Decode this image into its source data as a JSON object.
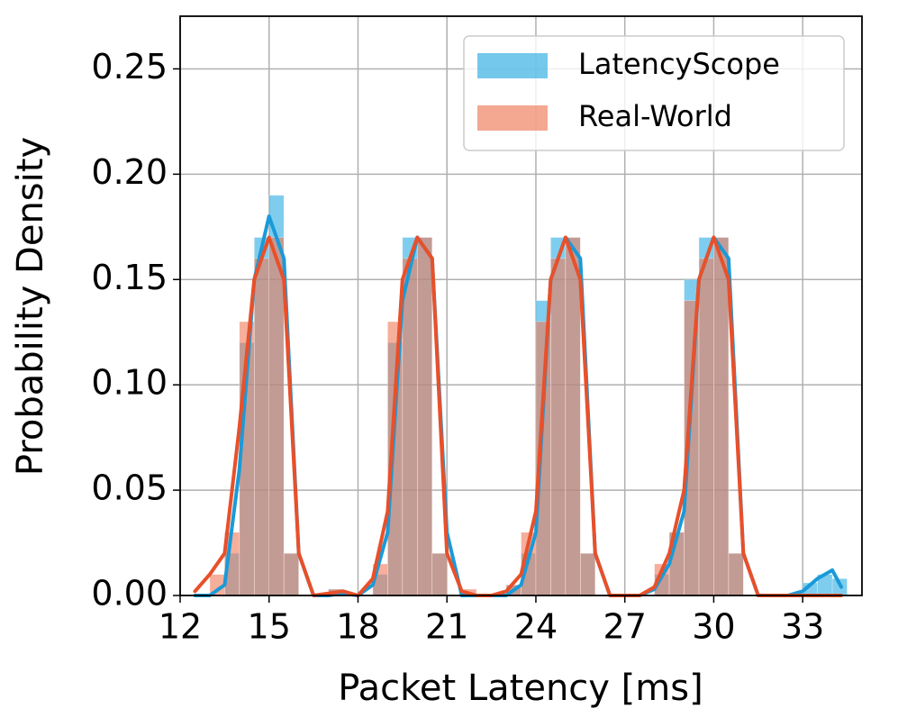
{
  "chart_data": {
    "type": "histogram",
    "x_label": "Packet Latency [ms]",
    "y_label": "Probability Density",
    "bins": [
      13,
      13.5,
      14,
      14.5,
      15,
      15.5,
      16,
      16.5,
      17,
      17.5,
      18,
      18.5,
      19,
      19.5,
      20,
      20.5,
      21,
      21.5,
      22,
      22.5,
      23,
      23.5,
      24,
      24.5,
      25,
      25.5,
      26,
      26.5,
      27,
      27.5,
      28,
      28.5,
      29,
      29.5,
      30,
      30.5,
      31,
      31.5,
      32,
      32.5,
      33,
      33.5,
      34,
      34.5
    ],
    "kde_x": [
      12.5,
      13,
      13.5,
      14,
      14.5,
      15,
      15.5,
      16,
      16.5,
      17,
      17.5,
      18,
      18.5,
      19,
      19.5,
      20,
      20.5,
      21,
      21.5,
      22,
      22.5,
      23,
      23.5,
      24,
      24.5,
      25,
      25.5,
      26,
      26.5,
      27,
      27.5,
      28,
      28.5,
      29,
      29.5,
      30,
      30.5,
      31,
      31.5,
      32,
      32.5,
      33,
      33.5,
      34,
      34.3
    ],
    "series": [
      {
        "name": "LatencyScope",
        "color": "#29abe2",
        "line_color": "#1a9ad8",
        "values": [
          0,
          0.02,
          0.12,
          0.17,
          0.19,
          0.02,
          0,
          0,
          0.003,
          0,
          0,
          0.01,
          0.12,
          0.17,
          0.17,
          0.02,
          0,
          0,
          0,
          0,
          0.005,
          0.02,
          0.14,
          0.17,
          0.17,
          0.02,
          0,
          0,
          0,
          0,
          0.01,
          0.03,
          0.15,
          0.17,
          0.17,
          0.02,
          0,
          0,
          0,
          0,
          0.006,
          0.01,
          0.008
        ],
        "kde": [
          0,
          0,
          0.005,
          0.06,
          0.15,
          0.18,
          0.16,
          0.02,
          0,
          0,
          0.001,
          0,
          0.005,
          0.03,
          0.14,
          0.17,
          0.16,
          0.03,
          0,
          0,
          0,
          0,
          0.005,
          0.03,
          0.15,
          0.17,
          0.16,
          0.02,
          0,
          0,
          0,
          0.003,
          0.015,
          0.04,
          0.15,
          0.17,
          0.16,
          0.02,
          0,
          0,
          0,
          0.002,
          0.008,
          0.012,
          0.004
        ]
      },
      {
        "name": "Real-World",
        "color": "#ee7a58",
        "line_color": "#e8502a",
        "values": [
          0.01,
          0.03,
          0.13,
          0.16,
          0.17,
          0.02,
          0,
          0,
          0.003,
          0,
          0,
          0.015,
          0.13,
          0.16,
          0.17,
          0.02,
          0,
          0.003,
          0,
          0,
          0.005,
          0.03,
          0.13,
          0.16,
          0.17,
          0.02,
          0,
          0,
          0,
          0,
          0.015,
          0.03,
          0.14,
          0.16,
          0.17,
          0.02,
          0,
          0,
          0,
          0,
          0,
          0,
          0
        ],
        "kde": [
          0.002,
          0.01,
          0.02,
          0.08,
          0.15,
          0.17,
          0.15,
          0.02,
          0,
          0.001,
          0.002,
          0,
          0.008,
          0.04,
          0.15,
          0.17,
          0.16,
          0.02,
          0.002,
          0,
          0,
          0.002,
          0.01,
          0.04,
          0.15,
          0.17,
          0.15,
          0.02,
          0,
          0,
          0,
          0.004,
          0.02,
          0.05,
          0.15,
          0.17,
          0.15,
          0.02,
          0,
          0,
          0,
          0,
          0,
          0,
          0
        ]
      }
    ],
    "xlim": [
      12,
      35
    ],
    "xticks": [
      12,
      15,
      18,
      21,
      24,
      27,
      30,
      33
    ],
    "ylim": [
      0,
      0.275
    ],
    "yticks": [
      {
        "value": 0,
        "label": "0.00"
      },
      {
        "value": 0.05,
        "label": "0.05"
      },
      {
        "value": 0.1,
        "label": "0.10"
      },
      {
        "value": 0.15,
        "label": "0.15"
      },
      {
        "value": 0.2,
        "label": "0.20"
      },
      {
        "value": 0.25,
        "label": "0.25"
      }
    ],
    "grid": true,
    "legend": "upper right"
  }
}
